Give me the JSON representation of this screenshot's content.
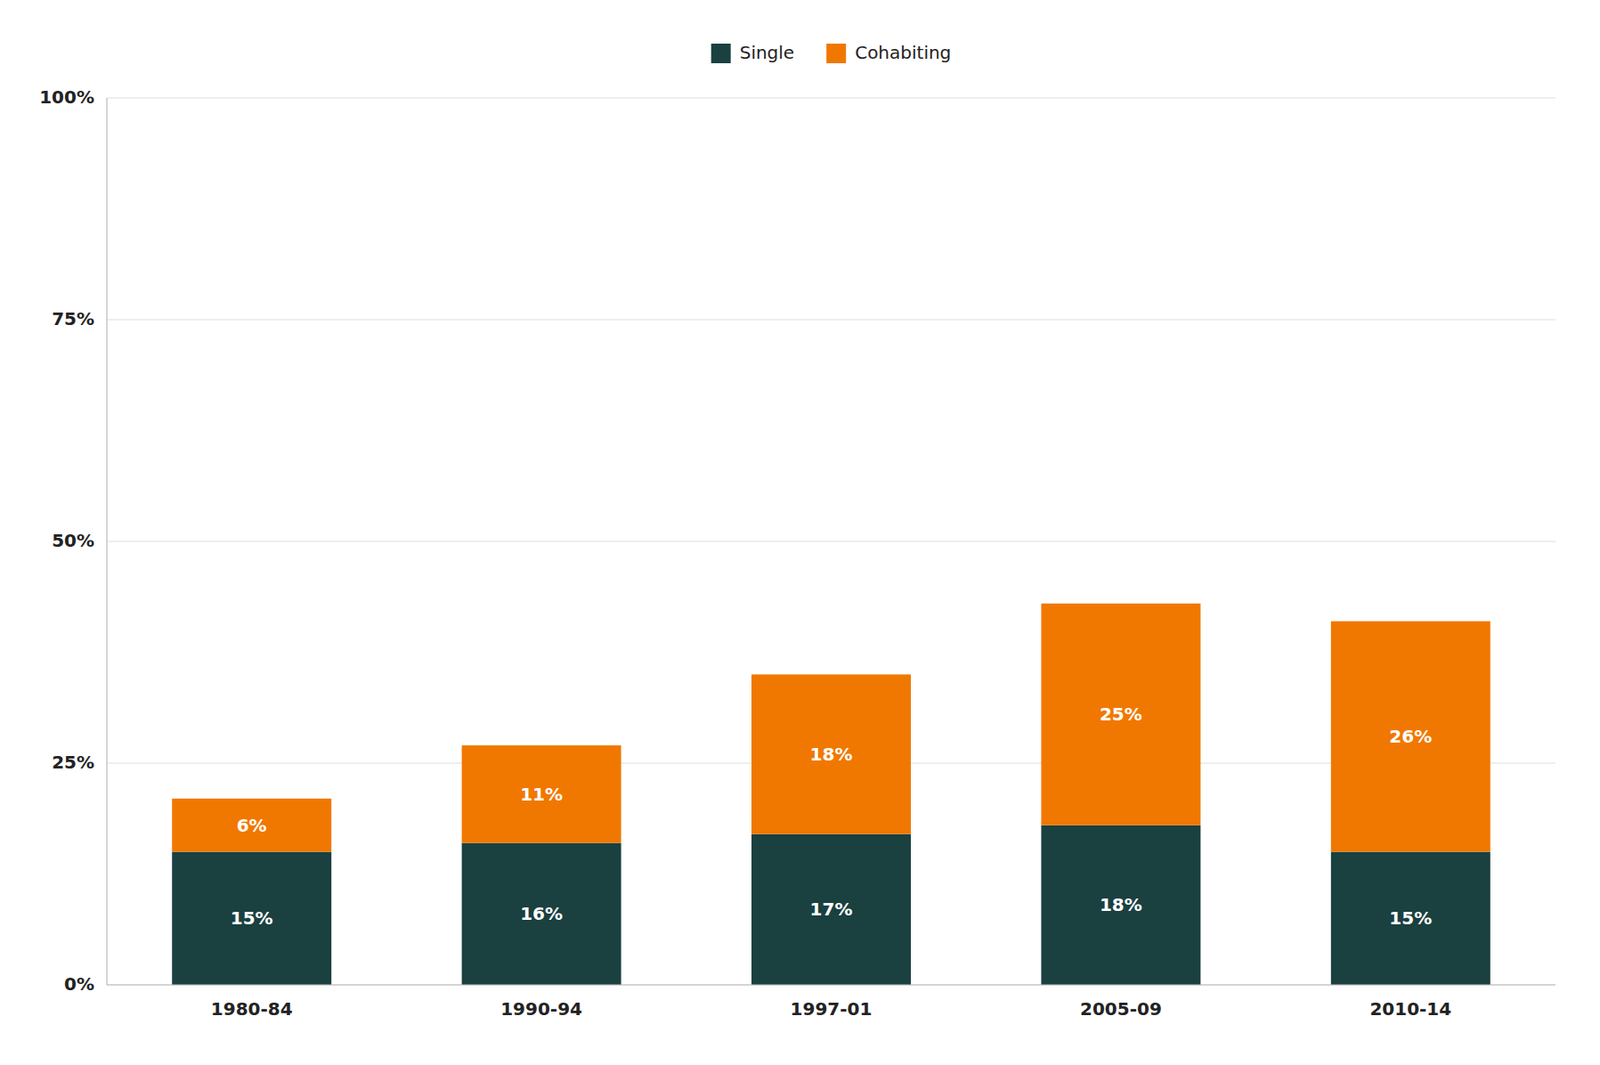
{
  "chart_data": {
    "type": "bar",
    "stacked": true,
    "categories": [
      "1980-84",
      "1990-94",
      "1997-01",
      "2005-09",
      "2010-14"
    ],
    "series": [
      {
        "name": "Single",
        "color": "#1a4040",
        "values": [
          15,
          16,
          17,
          18,
          15
        ],
        "value_labels": [
          "15%",
          "16%",
          "17%",
          "18%",
          "15%"
        ]
      },
      {
        "name": "Cohabiting",
        "color": "#f07800",
        "values": [
          6,
          11,
          18,
          25,
          26
        ],
        "value_labels": [
          "6%",
          "11%",
          "18%",
          "25%",
          "26%"
        ]
      }
    ],
    "ylim": [
      0,
      100
    ],
    "yticks": [
      {
        "value": 0,
        "label": "0%"
      },
      {
        "value": 25,
        "label": "25%"
      },
      {
        "value": 50,
        "label": "50%"
      },
      {
        "value": 75,
        "label": "75%"
      },
      {
        "value": 100,
        "label": "100%"
      }
    ],
    "grid": true,
    "legend": "top",
    "data_labels": true
  }
}
